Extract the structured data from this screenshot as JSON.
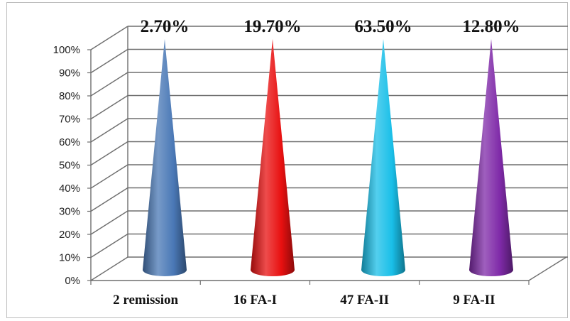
{
  "chart_data": {
    "type": "bar",
    "shape": "cone",
    "categories": [
      "2 remission",
      "16  FA-I",
      "47 FA-II",
      "9 FA-II"
    ],
    "values": [
      2.7,
      19.7,
      63.5,
      12.8
    ],
    "data_labels": [
      "2.70%",
      "19.70%",
      "63.50%",
      "12.80%"
    ],
    "y_ticks": [
      "0%",
      "10%",
      "20%",
      "30%",
      "40%",
      "50%",
      "60%",
      "70%",
      "80%",
      "90%",
      "100%"
    ],
    "ylim": [
      0,
      100
    ],
    "grid": true,
    "colors": [
      "#4a78b6",
      "#e81010",
      "#19bfe8",
      "#7f2aa8"
    ],
    "title": "",
    "xlabel": "",
    "ylabel": ""
  }
}
